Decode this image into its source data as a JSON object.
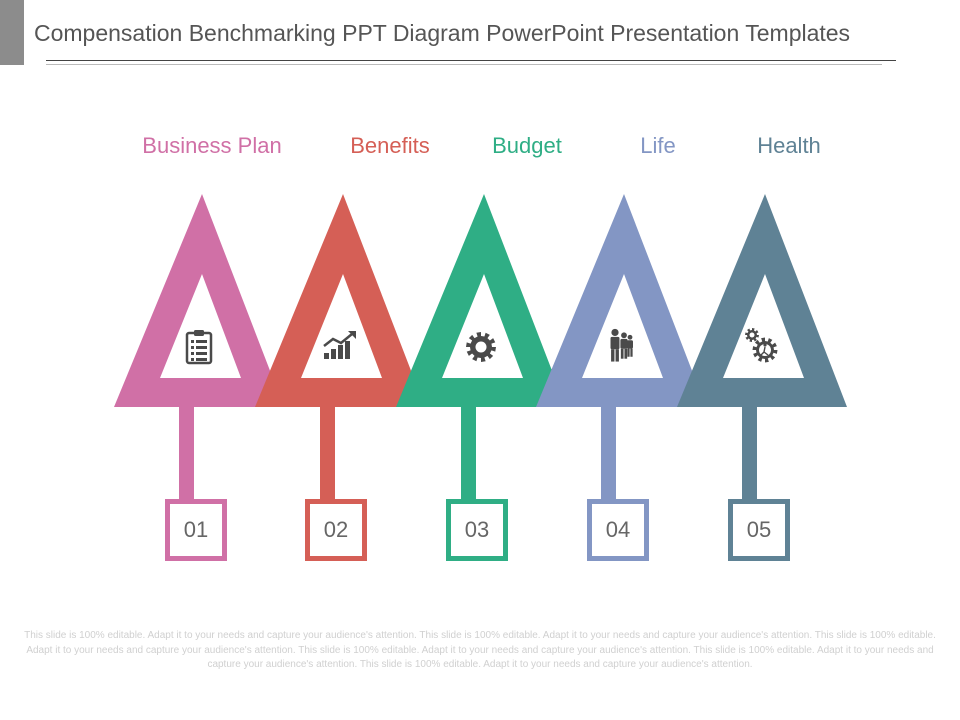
{
  "title": "Compensation Benchmarking PPT Diagram PowerPoint Presentation Templates",
  "items": [
    {
      "label": "Business Plan",
      "number": "01",
      "color": "#d070a6",
      "icon": "clipboard-list-icon"
    },
    {
      "label": "Benefits",
      "number": "02",
      "color": "#d55f56",
      "icon": "growth-chart-icon"
    },
    {
      "label": "Budget",
      "number": "03",
      "color": "#2fae85",
      "icon": "gear-icon"
    },
    {
      "label": "Life",
      "number": "04",
      "color": "#8396c4",
      "icon": "people-icon"
    },
    {
      "label": "Health",
      "number": "05",
      "color": "#5f8295",
      "icon": "gears-runner-icon"
    }
  ],
  "footer": "This slide is 100% editable. Adapt it to your needs and capture your audience's attention. This slide is 100% editable. Adapt it to your needs and capture your audience's attention. This slide is 100% editable. Adapt it to your needs and capture your audience's attention. This slide is 100% editable. Adapt it to your needs and capture your audience's attention. This slide is 100% editable. Adapt it to your needs and capture your audience's attention. This slide is 100% editable. Adapt it to your needs and capture your audience's attention."
}
